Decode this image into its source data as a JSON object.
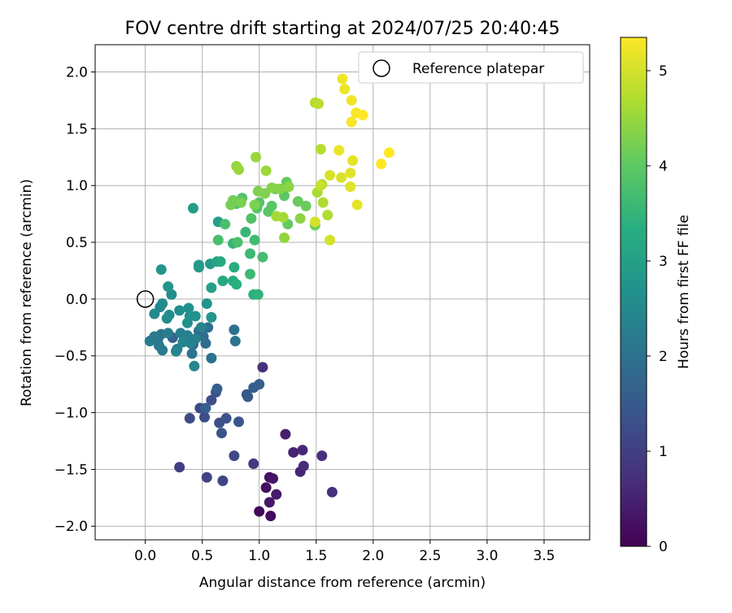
{
  "chart_data": {
    "type": "scatter",
    "title": "FOV centre drift starting at 2024/07/25 20:40:45",
    "xlabel": "Angular distance from reference (arcmin)",
    "ylabel": "Rotation from reference (arcmin)",
    "xlim": [
      -0.44,
      3.9
    ],
    "ylim": [
      -2.12,
      2.24
    ],
    "xticks": [
      0.0,
      0.5,
      1.0,
      1.5,
      2.0,
      2.5,
      3.0,
      3.5
    ],
    "xtick_labels": [
      "0.0",
      "0.5",
      "1.0",
      "1.5",
      "2.0",
      "2.5",
      "3.0",
      "3.5"
    ],
    "yticks": [
      2.0,
      1.5,
      1.0,
      0.5,
      0.0,
      -0.5,
      -1.0,
      -1.5,
      -2.0
    ],
    "ytick_labels": [
      "2.0",
      "1.5",
      "1.0",
      "0.5",
      "0.0",
      "−0.5",
      "−1.0",
      "−1.5",
      "−2.0"
    ],
    "grid": true,
    "legend": {
      "position": "top-right",
      "entries": [
        "Reference platepar"
      ]
    },
    "reference_point": {
      "x": 0.0,
      "y": 0.0
    },
    "colorbar": {
      "label": "Hours from first FF file",
      "colormap": "viridis",
      "range": [
        0,
        5.35
      ],
      "ticks": [
        0,
        1,
        2,
        3,
        4,
        5
      ],
      "tick_labels": [
        "0",
        "1",
        "2",
        "3",
        "4",
        "5"
      ]
    },
    "points": [
      [
        1.0,
        -1.87,
        0.1
      ],
      [
        1.1,
        -1.91,
        0.15
      ],
      [
        1.06,
        -1.66,
        0.2
      ],
      [
        1.09,
        -1.57,
        0.25
      ],
      [
        1.12,
        -1.58,
        0.3
      ],
      [
        1.09,
        -1.79,
        0.35
      ],
      [
        1.15,
        -1.72,
        0.4
      ],
      [
        1.23,
        -1.19,
        0.45
      ],
      [
        1.3,
        -1.35,
        0.5
      ],
      [
        1.36,
        -1.52,
        0.55
      ],
      [
        1.38,
        -1.33,
        0.6
      ],
      [
        1.39,
        -1.47,
        0.65
      ],
      [
        1.55,
        -1.38,
        0.7
      ],
      [
        1.64,
        -1.7,
        0.72
      ],
      [
        1.03,
        -0.6,
        0.75
      ],
      [
        0.95,
        -1.45,
        0.85
      ],
      [
        0.3,
        -1.48,
        1.0
      ],
      [
        0.54,
        -1.57,
        1.05
      ],
      [
        0.68,
        -1.6,
        1.1
      ],
      [
        0.78,
        -1.38,
        1.15
      ],
      [
        0.39,
        -1.05,
        1.2
      ],
      [
        0.48,
        -0.96,
        1.2
      ],
      [
        0.52,
        -1.04,
        1.25
      ],
      [
        0.58,
        -0.89,
        1.25
      ],
      [
        0.62,
        -0.82,
        1.3
      ],
      [
        0.65,
        -1.09,
        1.3
      ],
      [
        0.67,
        -1.18,
        1.35
      ],
      [
        0.71,
        -1.05,
        1.35
      ],
      [
        0.82,
        -1.08,
        1.4
      ],
      [
        0.89,
        -0.84,
        1.45
      ],
      [
        0.9,
        -0.86,
        1.5
      ],
      [
        0.95,
        -0.78,
        1.55
      ],
      [
        1.0,
        -0.75,
        1.6
      ],
      [
        0.63,
        -0.79,
        1.6
      ],
      [
        0.53,
        -0.96,
        1.65
      ],
      [
        0.24,
        -0.34,
        1.7
      ],
      [
        0.36,
        -0.36,
        1.75
      ],
      [
        0.42,
        -0.4,
        1.8
      ],
      [
        0.47,
        -0.28,
        1.85
      ],
      [
        0.51,
        -0.33,
        1.9
      ],
      [
        0.53,
        -0.39,
        1.9
      ],
      [
        0.55,
        -0.25,
        1.95
      ],
      [
        0.58,
        -0.52,
        2.0
      ],
      [
        0.78,
        -0.27,
        2.0
      ],
      [
        0.79,
        -0.37,
        2.05
      ],
      [
        0.41,
        -0.48,
        2.05
      ],
      [
        0.14,
        -0.31,
        2.1
      ],
      [
        0.11,
        -0.36,
        2.1
      ],
      [
        0.15,
        -0.45,
        2.15
      ],
      [
        0.12,
        -0.41,
        2.15
      ],
      [
        0.08,
        -0.33,
        2.2
      ],
      [
        0.04,
        -0.37,
        2.2
      ],
      [
        0.2,
        -0.3,
        2.25
      ],
      [
        0.28,
        -0.44,
        2.25
      ],
      [
        0.31,
        -0.3,
        2.3
      ],
      [
        0.37,
        -0.32,
        2.3
      ],
      [
        0.4,
        -0.39,
        2.35
      ],
      [
        0.44,
        -0.35,
        2.35
      ],
      [
        0.49,
        -0.25,
        2.4
      ],
      [
        0.27,
        -0.46,
        2.4
      ],
      [
        0.43,
        -0.59,
        2.45
      ],
      [
        0.33,
        -0.38,
        2.45
      ],
      [
        0.08,
        -0.13,
        2.5
      ],
      [
        0.13,
        -0.07,
        2.5
      ],
      [
        0.15,
        -0.04,
        2.55
      ],
      [
        0.19,
        -0.17,
        2.55
      ],
      [
        0.21,
        -0.14,
        2.6
      ],
      [
        0.23,
        0.04,
        2.6
      ],
      [
        0.3,
        -0.1,
        2.6
      ],
      [
        0.38,
        -0.08,
        2.65
      ],
      [
        0.37,
        -0.21,
        2.65
      ],
      [
        0.39,
        -0.15,
        2.7
      ],
      [
        0.44,
        -0.15,
        2.7
      ],
      [
        0.54,
        -0.04,
        2.75
      ],
      [
        0.58,
        -0.16,
        2.75
      ],
      [
        0.2,
        0.11,
        2.8
      ],
      [
        0.14,
        0.26,
        2.8
      ],
      [
        0.47,
        0.28,
        2.85
      ],
      [
        0.47,
        0.3,
        2.9
      ],
      [
        0.57,
        0.31,
        2.9
      ],
      [
        0.42,
        0.8,
        2.95
      ],
      [
        0.58,
        0.1,
        3.0
      ],
      [
        0.64,
        0.68,
        3.0
      ],
      [
        0.63,
        0.33,
        3.1
      ],
      [
        0.68,
        0.16,
        3.15
      ],
      [
        0.66,
        0.33,
        3.2
      ],
      [
        0.77,
        0.16,
        3.25
      ],
      [
        0.78,
        0.28,
        3.3
      ],
      [
        0.8,
        0.13,
        3.35
      ],
      [
        0.95,
        0.04,
        3.4
      ],
      [
        0.99,
        0.04,
        3.45
      ],
      [
        0.77,
        0.49,
        3.5
      ],
      [
        0.88,
        0.59,
        3.55
      ],
      [
        0.92,
        0.4,
        3.6
      ],
      [
        0.92,
        0.22,
        3.6
      ],
      [
        0.96,
        0.52,
        3.65
      ],
      [
        1.03,
        0.37,
        3.7
      ],
      [
        0.64,
        0.52,
        3.75
      ],
      [
        0.7,
        0.66,
        3.75
      ],
      [
        0.81,
        0.5,
        3.8
      ],
      [
        0.8,
        0.84,
        3.8
      ],
      [
        0.85,
        0.89,
        3.85
      ],
      [
        0.93,
        0.71,
        3.85
      ],
      [
        0.98,
        0.8,
        3.9
      ],
      [
        1.0,
        0.85,
        3.9
      ],
      [
        1.08,
        0.77,
        3.95
      ],
      [
        1.11,
        0.82,
        3.95
      ],
      [
        1.14,
        0.97,
        4.0
      ],
      [
        1.22,
        0.91,
        4.0
      ],
      [
        1.25,
        0.66,
        4.05
      ],
      [
        1.24,
        1.03,
        4.05
      ],
      [
        1.34,
        0.86,
        4.1
      ],
      [
        1.41,
        0.82,
        4.1
      ],
      [
        1.49,
        0.65,
        4.15
      ],
      [
        0.77,
        0.87,
        4.2
      ],
      [
        0.75,
        0.83,
        4.2
      ],
      [
        0.84,
        0.85,
        4.25
      ],
      [
        0.96,
        0.83,
        4.25
      ],
      [
        0.99,
        0.95,
        4.3
      ],
      [
        1.05,
        0.93,
        4.3
      ],
      [
        1.11,
        0.98,
        4.35
      ],
      [
        1.18,
        0.97,
        4.35
      ],
      [
        1.26,
        0.99,
        4.4
      ],
      [
        1.36,
        0.71,
        4.4
      ],
      [
        1.22,
        0.54,
        4.45
      ],
      [
        0.8,
        1.17,
        4.45
      ],
      [
        0.82,
        1.14,
        4.5
      ],
      [
        0.97,
        1.25,
        4.5
      ],
      [
        1.06,
        1.13,
        4.55
      ],
      [
        1.15,
        0.73,
        4.6
      ],
      [
        1.21,
        0.72,
        4.6
      ],
      [
        1.51,
        0.94,
        4.65
      ],
      [
        1.55,
        1.01,
        4.65
      ],
      [
        1.56,
        0.85,
        4.7
      ],
      [
        1.6,
        0.74,
        4.7
      ],
      [
        1.54,
        1.32,
        4.75
      ],
      [
        1.49,
        1.73,
        4.75
      ],
      [
        1.52,
        1.72,
        4.8
      ],
      [
        1.49,
        0.68,
        5.0
      ],
      [
        1.62,
        0.52,
        5.0
      ],
      [
        1.62,
        1.09,
        5.05
      ],
      [
        1.72,
        1.07,
        5.05
      ],
      [
        1.8,
        1.11,
        5.1
      ],
      [
        1.8,
        0.99,
        5.1
      ],
      [
        1.86,
        0.83,
        5.15
      ],
      [
        1.82,
        1.22,
        5.15
      ],
      [
        1.7,
        1.31,
        5.2
      ],
      [
        1.75,
        1.85,
        5.2
      ],
      [
        1.73,
        1.94,
        5.25
      ],
      [
        1.81,
        1.75,
        5.25
      ],
      [
        1.81,
        1.56,
        5.3
      ],
      [
        1.85,
        1.64,
        5.3
      ],
      [
        1.91,
        1.62,
        5.35
      ],
      [
        2.07,
        1.19,
        5.35
      ],
      [
        2.14,
        1.29,
        5.35
      ],
      [
        1.54,
        1.0,
        4.9
      ]
    ]
  }
}
